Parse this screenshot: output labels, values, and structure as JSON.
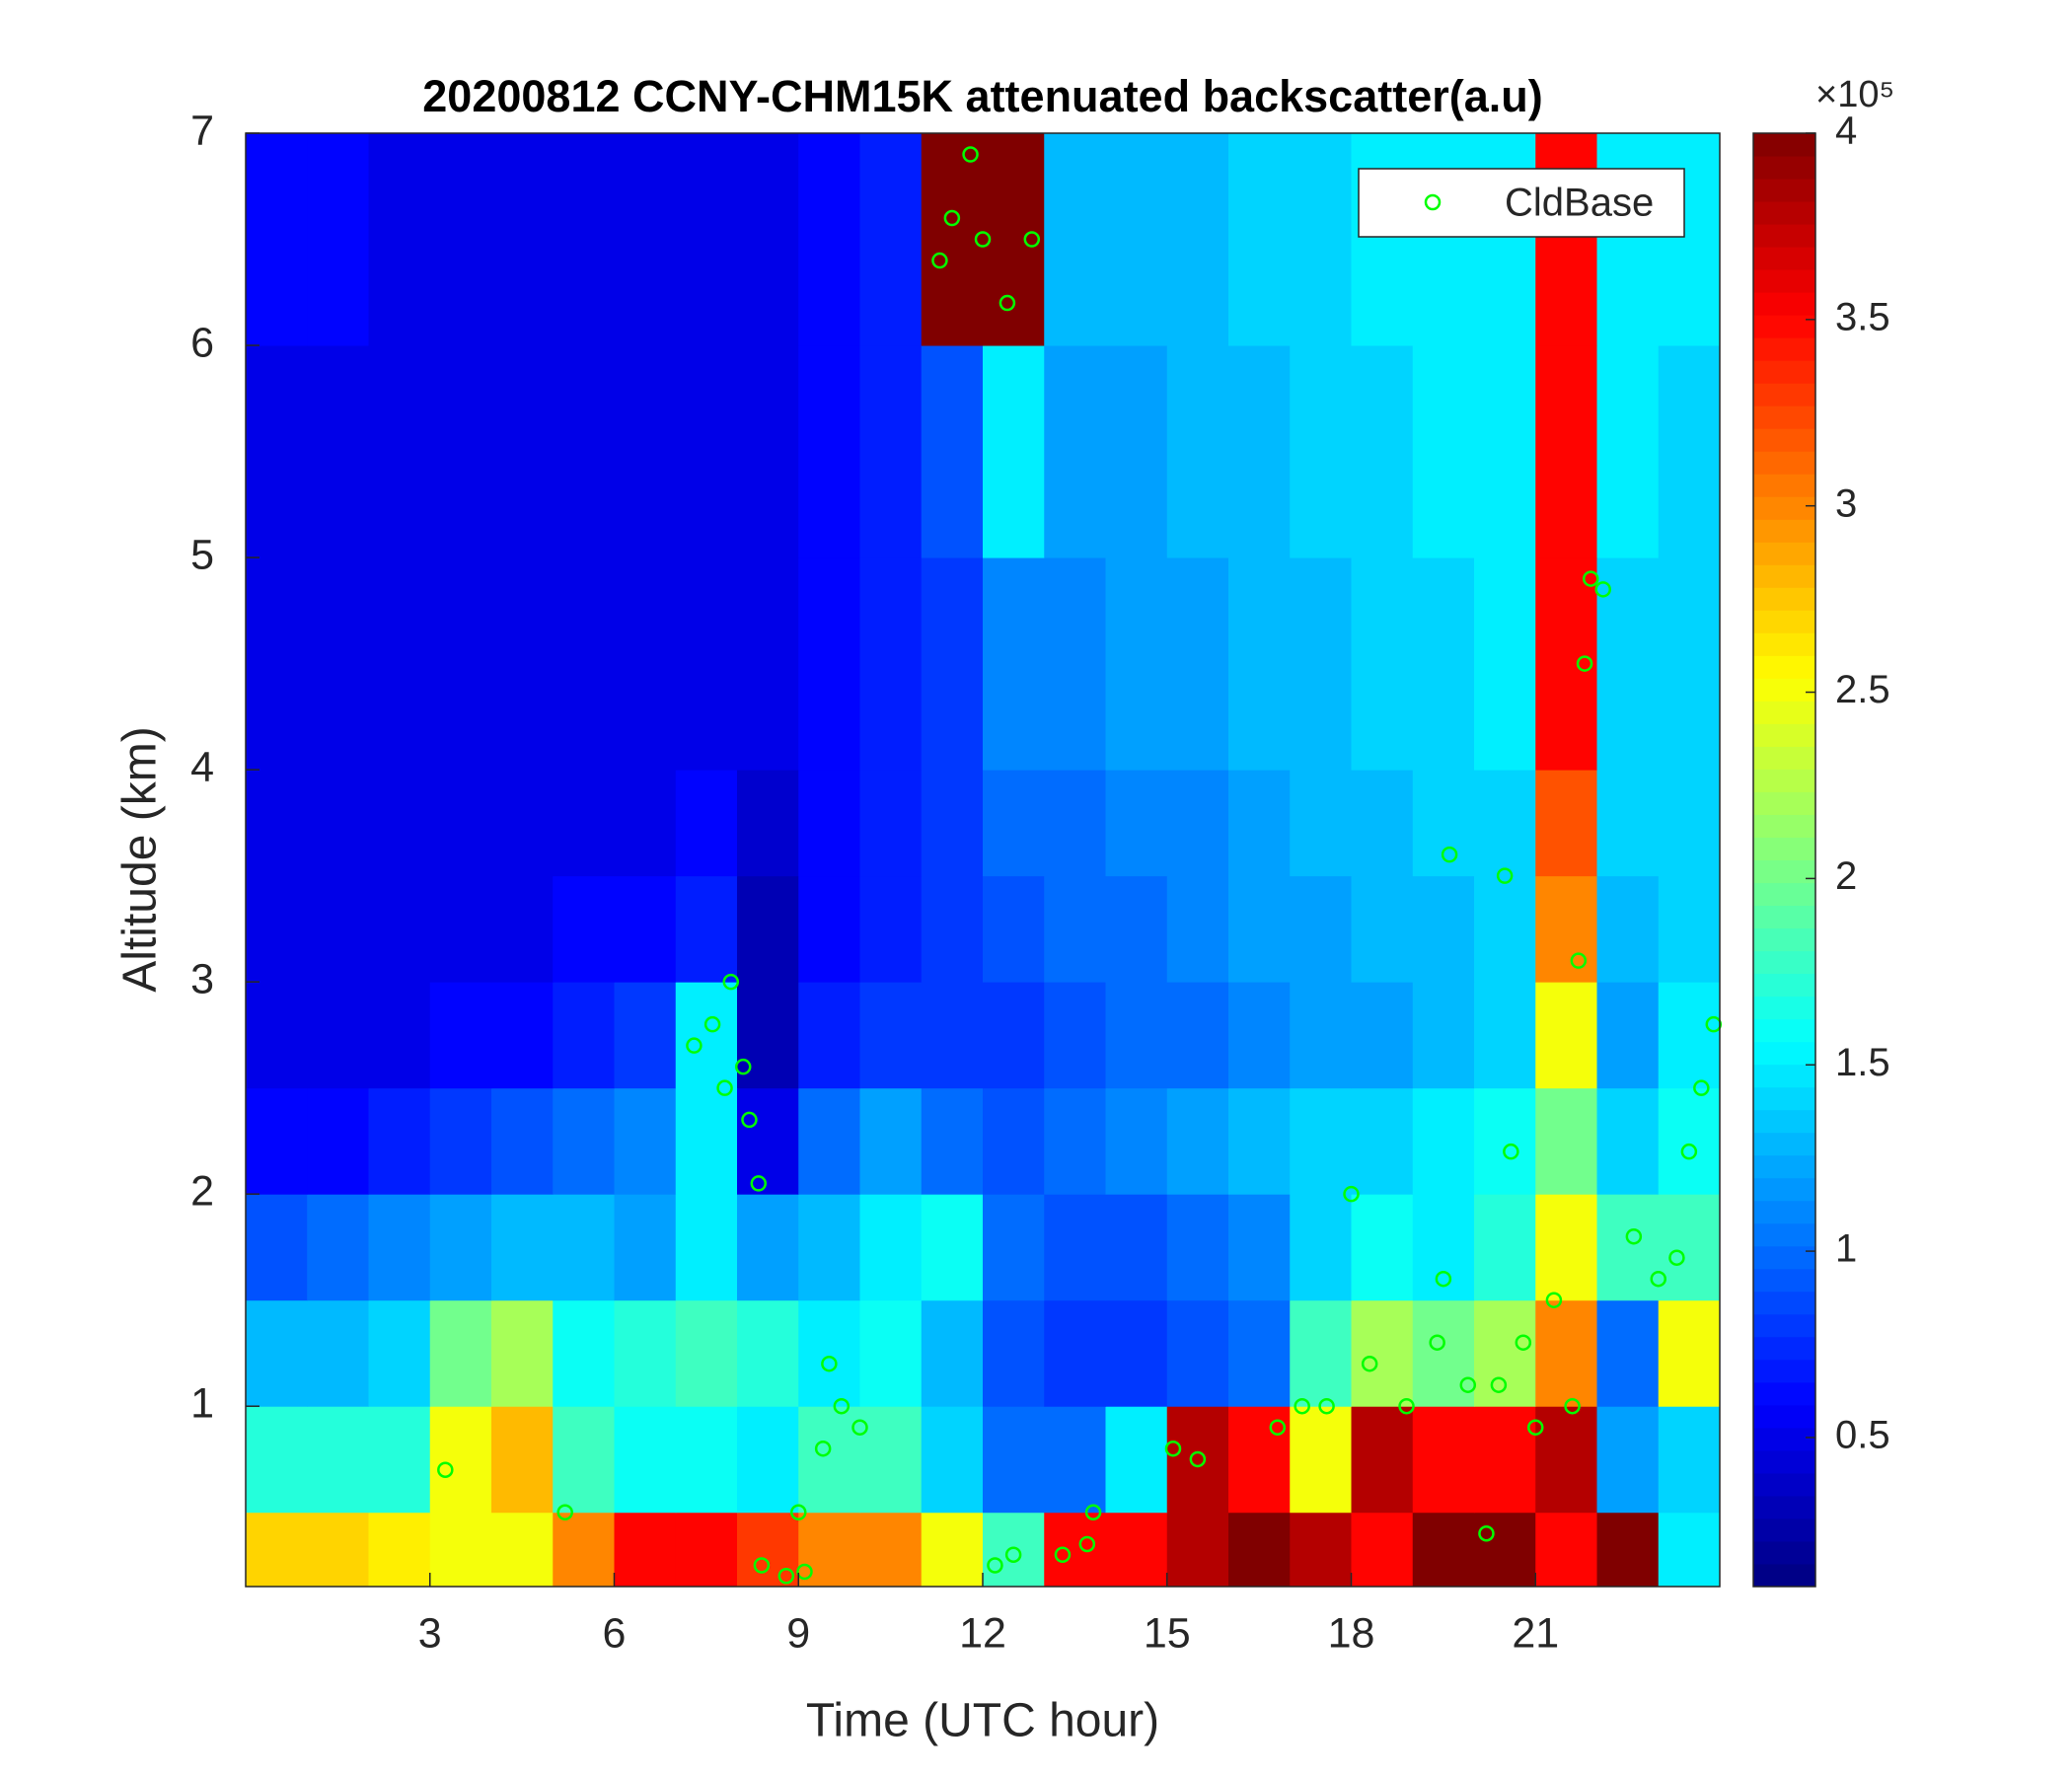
{
  "chart_data": {
    "type": "heatmap",
    "title": "20200812 CCNY-CHM15K attenuated backscatter(a.u)",
    "x_label": "Time (UTC hour)",
    "y_label": "Altitude (km)",
    "xlim": [
      0,
      24
    ],
    "xticks": [
      3,
      6,
      9,
      12,
      15,
      18,
      21
    ],
    "ylim": [
      0.15,
      7
    ],
    "yticks": [
      1,
      2,
      3,
      4,
      5,
      6,
      7
    ],
    "x_edges": [
      0,
      1,
      2,
      3,
      4,
      5,
      6,
      7,
      8,
      9,
      10,
      11,
      12,
      13,
      14,
      15,
      16,
      17,
      18,
      19,
      20,
      21,
      22,
      23,
      24
    ],
    "y_edges": [
      0.15,
      0.5,
      1,
      1.5,
      2,
      2.5,
      3,
      3.5,
      4,
      5,
      6,
      7
    ],
    "colormap": "jet",
    "clim": [
      0.1,
      4
    ],
    "colorbar_ticks": [
      0.5,
      1,
      1.5,
      2,
      2.5,
      3,
      3.5,
      4
    ],
    "colorbar_exponent_label": "×10⁵",
    "z": [
      [
        2.7,
        2.7,
        2.6,
        2.5,
        2.5,
        3.0,
        3.5,
        3.5,
        3.3,
        3.0,
        3.0,
        2.5,
        1.8,
        3.5,
        3.5,
        3.8,
        4.0,
        3.8,
        3.5,
        4.0,
        4.0,
        3.5,
        4.0,
        1.5
      ],
      [
        1.7,
        1.7,
        1.7,
        2.5,
        2.8,
        1.8,
        1.6,
        1.6,
        1.5,
        1.8,
        1.8,
        1.4,
        1.0,
        1.0,
        1.5,
        3.8,
        3.5,
        2.5,
        3.8,
        3.5,
        3.5,
        3.8,
        1.2,
        1.4
      ],
      [
        1.3,
        1.3,
        1.4,
        2.0,
        2.2,
        1.6,
        1.7,
        1.8,
        1.7,
        1.5,
        1.6,
        1.3,
        0.9,
        0.8,
        0.8,
        0.9,
        1.0,
        1.8,
        2.2,
        2.0,
        2.2,
        3.0,
        1.0,
        2.5
      ],
      [
        0.9,
        1.0,
        1.1,
        1.2,
        1.3,
        1.3,
        1.2,
        1.5,
        1.2,
        1.3,
        1.5,
        1.6,
        1.0,
        0.9,
        0.9,
        1.0,
        1.1,
        1.4,
        1.6,
        1.5,
        1.7,
        2.5,
        1.8,
        1.8
      ],
      [
        0.6,
        0.6,
        0.7,
        0.8,
        0.9,
        1.0,
        1.1,
        1.5,
        0.5,
        1.0,
        1.2,
        1.0,
        0.9,
        1.0,
        1.1,
        1.2,
        1.3,
        1.4,
        1.4,
        1.5,
        1.6,
        2.0,
        1.4,
        1.6
      ],
      [
        0.5,
        0.5,
        0.5,
        0.6,
        0.6,
        0.7,
        0.8,
        1.5,
        0.3,
        0.7,
        0.8,
        0.8,
        0.8,
        0.9,
        1.0,
        1.0,
        1.1,
        1.2,
        1.2,
        1.3,
        1.4,
        2.5,
        1.2,
        1.5
      ],
      [
        0.5,
        0.5,
        0.5,
        0.5,
        0.5,
        0.6,
        0.6,
        0.7,
        0.3,
        0.6,
        0.7,
        0.8,
        0.9,
        1.0,
        1.0,
        1.1,
        1.2,
        1.2,
        1.3,
        1.3,
        1.4,
        3.0,
        1.3,
        1.4
      ],
      [
        0.5,
        0.5,
        0.5,
        0.5,
        0.5,
        0.5,
        0.5,
        0.6,
        0.4,
        0.6,
        0.7,
        0.8,
        1.0,
        1.0,
        1.1,
        1.1,
        1.2,
        1.3,
        1.3,
        1.4,
        1.4,
        3.2,
        1.4,
        1.4
      ],
      [
        0.5,
        0.5,
        0.5,
        0.5,
        0.5,
        0.5,
        0.5,
        0.5,
        0.5,
        0.6,
        0.7,
        0.8,
        1.1,
        1.1,
        1.2,
        1.2,
        1.3,
        1.3,
        1.4,
        1.4,
        1.5,
        3.5,
        1.4,
        1.4
      ],
      [
        0.5,
        0.5,
        0.5,
        0.5,
        0.5,
        0.5,
        0.5,
        0.5,
        0.5,
        0.6,
        0.7,
        0.9,
        1.5,
        1.2,
        1.2,
        1.3,
        1.3,
        1.4,
        1.4,
        1.5,
        1.5,
        3.5,
        1.5,
        1.4
      ],
      [
        0.6,
        0.6,
        0.5,
        0.5,
        0.5,
        0.5,
        0.5,
        0.5,
        0.5,
        0.6,
        0.7,
        4.0,
        4.0,
        1.3,
        1.3,
        1.3,
        1.4,
        1.4,
        1.5,
        1.5,
        1.5,
        3.5,
        1.5,
        1.5
      ]
    ],
    "legend": "upper right",
    "series": [
      {
        "name": "CldBase",
        "type": "scatter",
        "color": "#00ff00",
        "x": [
          3.25,
          5.2,
          7.3,
          7.6,
          7.8,
          7.9,
          8.1,
          8.2,
          8.35,
          8.4,
          8.8,
          9.0,
          9.1,
          9.4,
          9.5,
          9.7,
          10.0,
          11.3,
          11.5,
          11.8,
          12.0,
          12.2,
          12.4,
          12.5,
          12.8,
          13.3,
          13.7,
          13.8,
          15.1,
          15.5,
          16.8,
          17.2,
          17.6,
          18.0,
          18.3,
          18.9,
          19.4,
          19.5,
          19.6,
          19.9,
          20.2,
          20.4,
          20.5,
          20.6,
          20.8,
          21.0,
          21.3,
          21.6,
          21.7,
          21.8,
          21.9,
          22.1,
          22.6,
          23.0,
          23.3,
          23.5,
          23.7,
          23.9
        ],
        "values": [
          0.7,
          0.5,
          2.7,
          2.8,
          2.5,
          3.0,
          2.6,
          2.35,
          2.05,
          0.25,
          0.2,
          0.5,
          0.22,
          0.8,
          1.2,
          1.0,
          0.9,
          6.4,
          6.6,
          6.9,
          6.5,
          0.25,
          6.2,
          0.3,
          6.5,
          0.3,
          0.35,
          0.5,
          0.8,
          0.75,
          0.9,
          1.0,
          1.0,
          2.0,
          1.2,
          1.0,
          1.3,
          1.6,
          3.6,
          1.1,
          0.4,
          1.1,
          3.5,
          2.2,
          1.3,
          0.9,
          1.5,
          1.0,
          3.1,
          4.5,
          4.9,
          4.85,
          1.8,
          1.6,
          1.7,
          2.2,
          2.5,
          2.8
        ]
      }
    ]
  }
}
